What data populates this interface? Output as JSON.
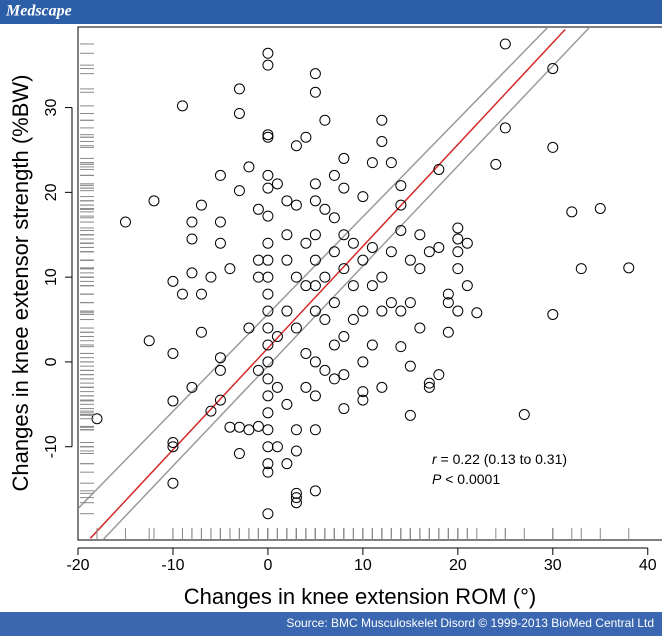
{
  "header": "Medscape",
  "footer": "Source: BMC Musculoskelet Disord © 1999-2013 BioMed Central Ltd",
  "chart_data": {
    "type": "scatter",
    "xlabel": "Changes in knee extension ROM (°)",
    "ylabel": "Changes in knee extensor strength (%BW)",
    "xlim": [
      -20,
      41.5
    ],
    "ylim": [
      -21,
      39.5
    ],
    "xticks": [
      -20,
      -10,
      0,
      10,
      20,
      30,
      40
    ],
    "yticks": [
      -10,
      0,
      10,
      20,
      30
    ],
    "x": [
      -18,
      -15,
      -12,
      -12.5,
      -10,
      -10,
      -10,
      -10,
      -10,
      -10,
      -9,
      -9,
      -8,
      -8,
      -8,
      -8,
      -7,
      -7,
      -7,
      -6,
      -6,
      -5,
      -5,
      -5,
      -5,
      -5,
      -5,
      -4,
      -4,
      -3,
      -3,
      -3,
      -3,
      -3,
      -2,
      -2,
      -2,
      -1,
      -1,
      -1,
      -1,
      -1,
      0,
      0,
      0,
      0,
      0,
      0,
      0,
      0,
      0,
      0,
      0,
      0,
      0,
      0,
      0,
      0,
      0,
      0,
      0,
      0,
      0,
      0,
      0,
      1,
      1,
      1,
      1,
      2,
      2,
      2,
      2,
      2,
      2,
      3,
      3,
      3,
      3,
      3,
      3,
      3,
      3,
      3,
      4,
      4,
      4,
      4,
      4,
      5,
      5,
      5,
      5,
      5,
      5,
      5,
      5,
      5,
      5,
      5,
      5,
      6,
      6,
      6,
      6,
      6,
      7,
      7,
      7,
      7,
      7,
      7,
      8,
      8,
      8,
      8,
      8,
      8,
      8,
      9,
      9,
      9,
      10,
      10,
      10,
      10,
      10,
      10,
      11,
      11,
      11,
      11,
      12,
      12,
      12,
      12,
      12,
      13,
      13,
      13,
      14,
      14,
      14,
      14,
      14,
      15,
      15,
      15,
      15,
      16,
      16,
      16,
      17,
      17,
      17,
      18,
      18,
      18,
      19,
      19,
      19,
      20,
      20,
      20,
      20,
      20,
      21,
      21,
      22,
      24,
      25,
      25,
      27,
      30,
      30,
      30,
      32,
      33,
      35,
      38
    ],
    "y": [
      -6.7,
      16.5,
      19,
      2.5,
      -10,
      -9.5,
      -14.3,
      -4.6,
      1,
      9.5,
      30.2,
      8,
      -3,
      10.5,
      14.5,
      16.5,
      18.5,
      3.5,
      8,
      10,
      -5.8,
      -1,
      0.5,
      -4.5,
      22,
      16.5,
      14,
      11,
      -7.7,
      -7.7,
      -10.8,
      20.2,
      29.3,
      32.2,
      23,
      -8,
      4,
      -7.6,
      -1,
      10,
      12,
      18,
      36.4,
      35,
      26.8,
      26.5,
      22,
      20.5,
      17.2,
      14,
      12,
      10,
      8,
      6,
      4,
      2,
      0,
      -2,
      -4,
      -6,
      -8,
      -10,
      -12,
      -13,
      -17.9,
      21,
      3,
      -3,
      -10,
      19,
      15,
      12,
      6,
      -5,
      -12,
      25.5,
      18.5,
      10,
      4,
      -15.5,
      -16,
      -16.6,
      -8,
      -10.5,
      26.5,
      14,
      9,
      1,
      -3,
      34,
      31.8,
      21,
      19,
      15,
      12,
      9,
      6,
      0,
      -4,
      -15.2,
      -8,
      28.5,
      18,
      10,
      5,
      -1,
      22,
      17,
      13,
      7,
      2,
      -2,
      24,
      20.5,
      15,
      11,
      3,
      -1.5,
      -5.5,
      14,
      9,
      5,
      19.5,
      12,
      6,
      0,
      -3.5,
      -4.5,
      23.5,
      13.5,
      9,
      2,
      28.5,
      26,
      10,
      6,
      -3,
      23.5,
      13,
      7,
      20.8,
      18.5,
      15.5,
      6,
      1.8,
      12,
      7,
      -0.5,
      -6.3,
      15,
      11,
      4,
      13,
      -2.5,
      -3,
      22.7,
      13.5,
      -1.5,
      8,
      3.5,
      7,
      15.8,
      14.5,
      13,
      11,
      6,
      14,
      9,
      5.8,
      23.3,
      27.6,
      37.5,
      -6.2,
      34.6,
      25.3,
      5.6,
      17.7,
      11,
      18.1,
      11.1
    ],
    "fit": {
      "color": "#d42a2a",
      "x": [
        -18.7,
        31.3
      ],
      "y": [
        -20.8,
        39.2
      ]
    },
    "bands": [
      {
        "color": "#9a9a9a",
        "x": [
          -20,
          29.5
        ],
        "y": [
          -17.3,
          39.5
        ]
      },
      {
        "color": "#9a9a9a",
        "x": [
          -17.4,
          33.9
        ],
        "y": [
          -21,
          39.5
        ]
      }
    ],
    "rug_color": "#8a8a8a",
    "annotations": [
      {
        "italic": "r",
        "text": " = 0.22 (0.13 to 0.31)"
      },
      {
        "italic": "P",
        "text": " < 0.0001"
      }
    ]
  }
}
